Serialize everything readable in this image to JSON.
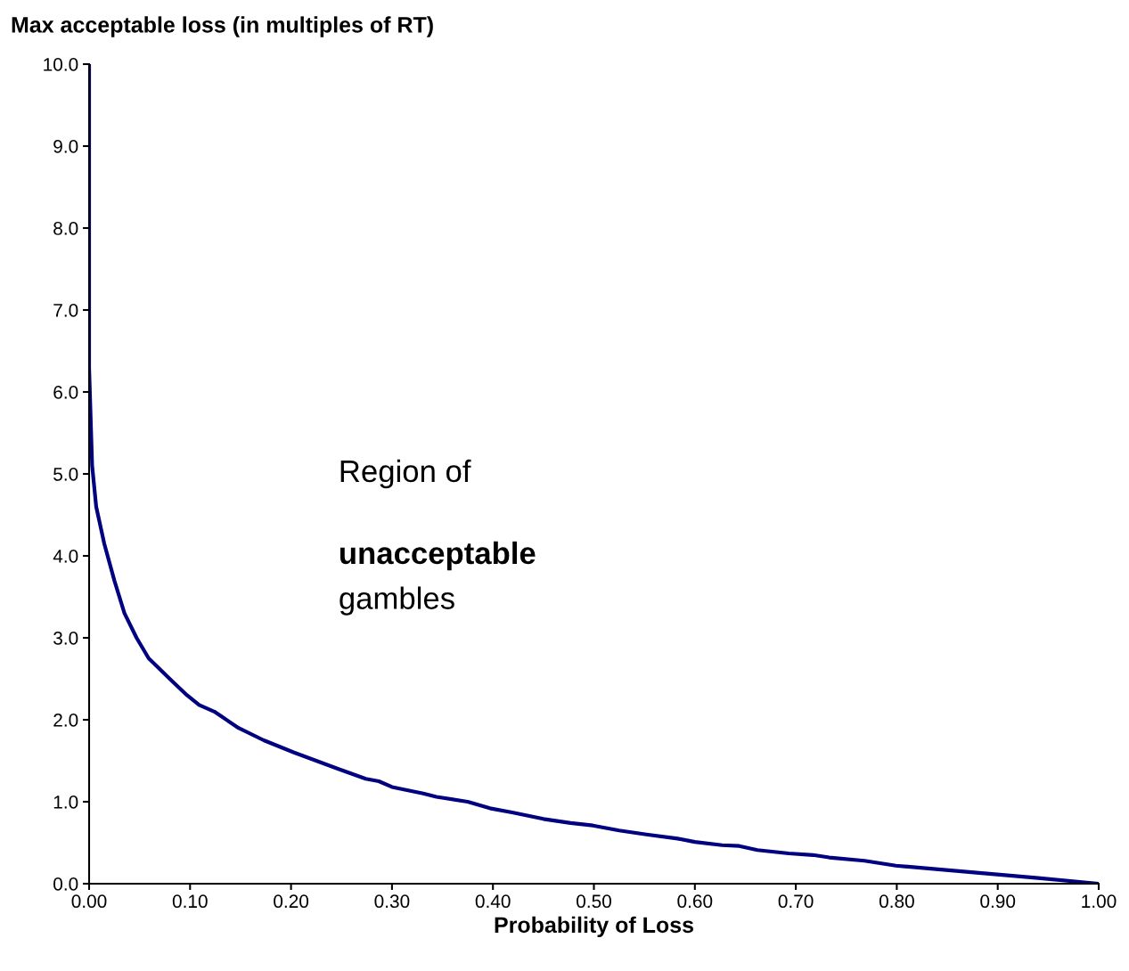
{
  "chart_data": {
    "type": "line",
    "ylabel": "Max acceptable loss (in multiples of RT)",
    "xlabel": "Probability of Loss",
    "annotations": [
      "Region of",
      "unacceptable",
      "gambles"
    ],
    "x": [
      0,
      0,
      0.003,
      0.007,
      0.015,
      0.025,
      0.035,
      0.047,
      0.059,
      0.084,
      0.097,
      0.109,
      0.124,
      0.148,
      0.173,
      0.203,
      0.247,
      0.274,
      0.287,
      0.3,
      0.331,
      0.344,
      0.375,
      0.397,
      0.419,
      0.45,
      0.477,
      0.499,
      0.525,
      0.552,
      0.583,
      0.6,
      0.627,
      0.644,
      0.662,
      0.693,
      0.717,
      0.733,
      0.768,
      0.799,
      0.874,
      0.94,
      1.0
    ],
    "series": [
      {
        "color": "#000080",
        "values": [
          10.0,
          6.3,
          5.1,
          4.6,
          4.15,
          3.7,
          3.3,
          3.0,
          2.75,
          2.45,
          2.3,
          2.18,
          2.1,
          1.9,
          1.75,
          1.6,
          1.4,
          1.28,
          1.25,
          1.18,
          1.1,
          1.06,
          1.0,
          0.92,
          0.87,
          0.79,
          0.74,
          0.71,
          0.65,
          0.6,
          0.55,
          0.51,
          0.47,
          0.46,
          0.41,
          0.37,
          0.35,
          0.32,
          0.28,
          0.22,
          0.14,
          0.07,
          0.0
        ]
      }
    ],
    "xlim": [
      0,
      1
    ],
    "ylim": [
      0,
      10
    ],
    "xticks": [
      {
        "value": 0,
        "label": "0.00"
      },
      {
        "value": 0.1,
        "label": "0.10"
      },
      {
        "value": 0.2,
        "label": "0.20"
      },
      {
        "value": 0.3,
        "label": "0.30"
      },
      {
        "value": 0.4,
        "label": "0.40"
      },
      {
        "value": 0.5,
        "label": "0.50"
      },
      {
        "value": 0.6,
        "label": "0.60"
      },
      {
        "value": 0.7,
        "label": "0.70"
      },
      {
        "value": 0.8,
        "label": "0.80"
      },
      {
        "value": 0.9,
        "label": "0.90"
      },
      {
        "value": 1,
        "label": "1.00"
      }
    ],
    "yticks": [
      {
        "value": 0,
        "label": "0.0"
      },
      {
        "value": 1,
        "label": "1.0"
      },
      {
        "value": 2,
        "label": "2.0"
      },
      {
        "value": 3,
        "label": "3.0"
      },
      {
        "value": 4,
        "label": "4.0"
      },
      {
        "value": 5,
        "label": "5.0"
      },
      {
        "value": 6,
        "label": "6.0"
      },
      {
        "value": 7,
        "label": "7.0"
      },
      {
        "value": 8,
        "label": "8.0"
      },
      {
        "value": 9,
        "label": "9.0"
      },
      {
        "value": 10,
        "label": "10.0"
      }
    ],
    "grid": false,
    "legend": false,
    "marker": "none",
    "line_style": "solid"
  }
}
